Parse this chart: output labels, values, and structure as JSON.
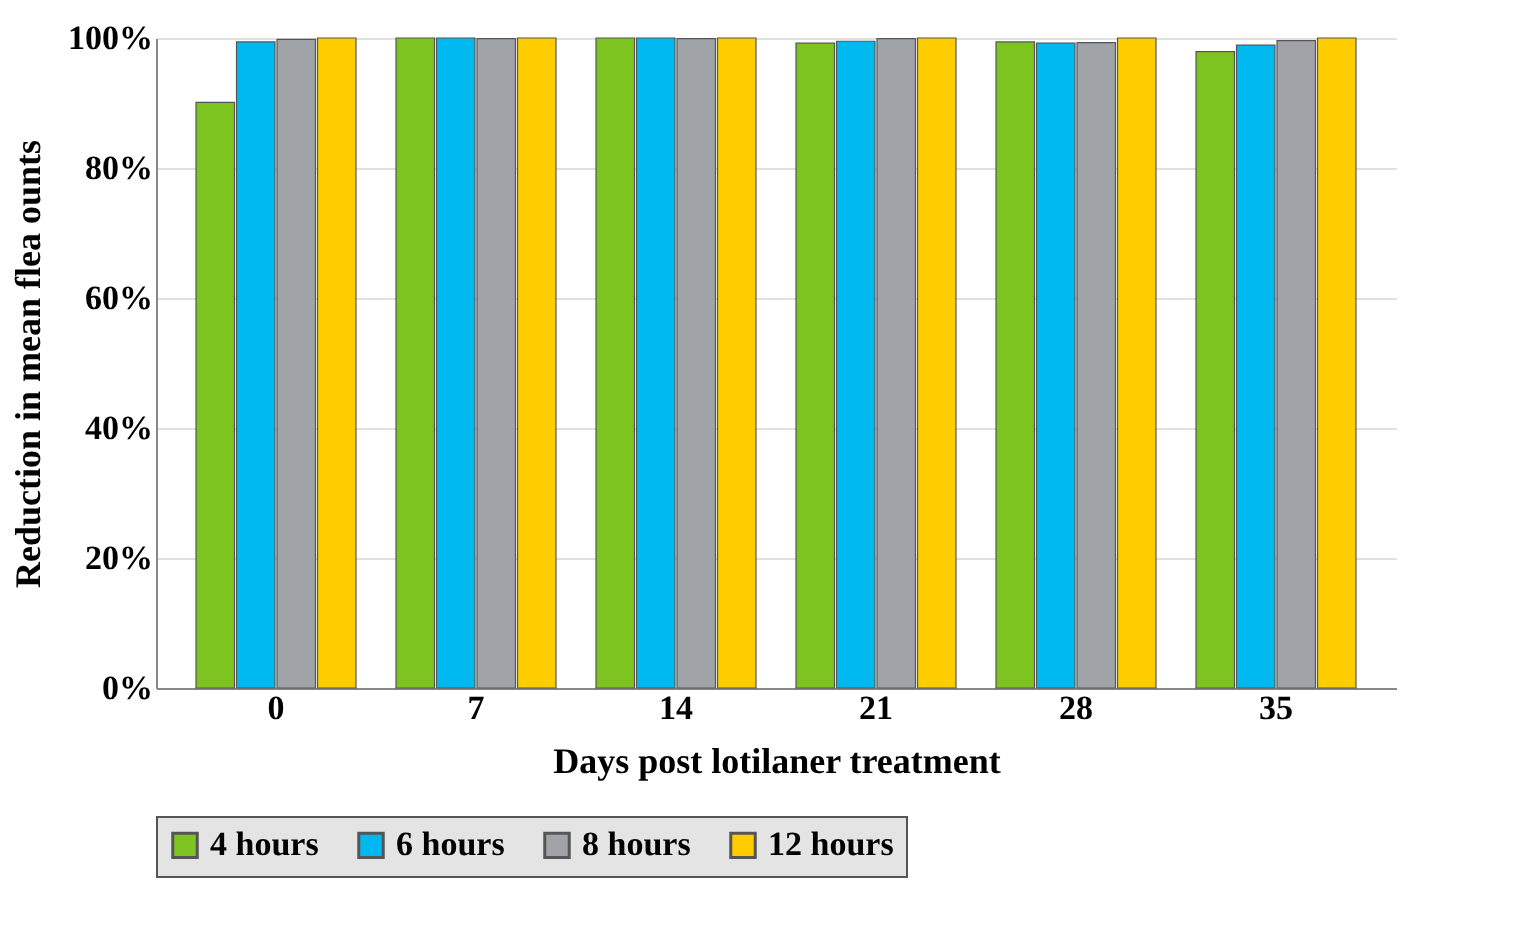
{
  "chart_data": {
    "type": "bar",
    "xlabel": "Days post lotilaner treatment",
    "ylabel": "Reduction in mean flea ounts",
    "categories": [
      "0",
      "7",
      "14",
      "21",
      "28",
      "35"
    ],
    "series": [
      {
        "name": "4 hours",
        "color": "#7dc421",
        "values": [
          90.1,
          100,
          100,
          99.2,
          99.4,
          97.9
        ]
      },
      {
        "name": "6 hours",
        "color": "#00b8f0",
        "values": [
          99.4,
          100,
          100,
          99.5,
          99.2,
          98.9
        ]
      },
      {
        "name": "8 hours",
        "color": "#a0a4a8",
        "values": [
          99.8,
          99.9,
          99.9,
          99.9,
          99.3,
          99.6
        ]
      },
      {
        "name": "12 hours",
        "color": "#ffcc00",
        "values": [
          100,
          100,
          100,
          100,
          100,
          100
        ]
      }
    ],
    "ylim": [
      0,
      100
    ],
    "yticks": [
      {
        "value": 0,
        "label": "0%"
      },
      {
        "value": 20,
        "label": "20%"
      },
      {
        "value": 40,
        "label": "40%"
      },
      {
        "value": 60,
        "label": "60%"
      },
      {
        "value": 80,
        "label": "80%"
      },
      {
        "value": 100,
        "label": "100%"
      }
    ],
    "grid": "y",
    "legend": "bottom"
  }
}
